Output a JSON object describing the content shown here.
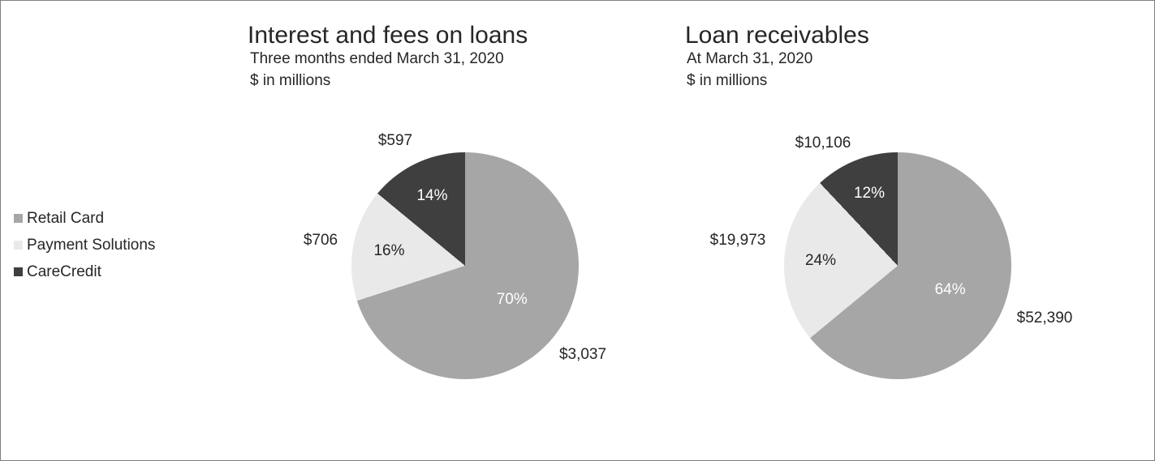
{
  "panel": {
    "background": "#ffffff",
    "border_color": "#7f7f7f"
  },
  "legend": {
    "items": [
      {
        "label": "Retail Card",
        "color": "#a6a6a6"
      },
      {
        "label": "Payment Solutions",
        "color": "#e9e9e9"
      },
      {
        "label": "CareCredit",
        "color": "#3f3f3f"
      }
    ]
  },
  "chart_data": [
    {
      "type": "pie",
      "title": "Interest and fees on loans",
      "subtitle": "Three months ended March 31, 2020",
      "units": "$ in millions",
      "labels": [
        "Retail Card",
        "Payment Solutions",
        "CareCredit"
      ],
      "values_pct": [
        70,
        16,
        14
      ],
      "values_millions": [
        3037,
        706,
        597
      ],
      "pct_labels": [
        "70%",
        "16%",
        "14%"
      ],
      "value_labels": [
        "$3,037",
        "$706",
        "$597"
      ],
      "colors": [
        "#a6a6a6",
        "#e9e9e9",
        "#3f3f3f"
      ],
      "start_angle_deg": 0,
      "direction": "clockwise",
      "legend_position": "left"
    },
    {
      "type": "pie",
      "title": "Loan receivables",
      "subtitle": "At March 31, 2020",
      "units": "$ in millions",
      "labels": [
        "Retail Card",
        "Payment Solutions",
        "CareCredit"
      ],
      "values_pct": [
        64,
        24,
        12
      ],
      "values_millions": [
        52390,
        19973,
        10106
      ],
      "pct_labels": [
        "64%",
        "24%",
        "12%"
      ],
      "value_labels": [
        "$52,390",
        "$19,973",
        "$10,106"
      ],
      "colors": [
        "#a6a6a6",
        "#e9e9e9",
        "#3f3f3f"
      ],
      "start_angle_deg": 0,
      "direction": "clockwise",
      "legend_position": "left"
    }
  ]
}
